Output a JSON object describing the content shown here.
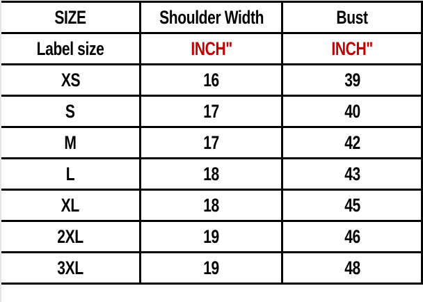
{
  "headers": [
    "SIZE",
    "Shoulder Width",
    "Bust"
  ],
  "unit_row": {
    "label": "Label size",
    "units": [
      "INCH\"",
      "INCH\""
    ]
  },
  "rows": [
    [
      "XS",
      "16",
      "39"
    ],
    [
      "S",
      "17",
      "40"
    ],
    [
      "M",
      "17",
      "42"
    ],
    [
      "L",
      "18",
      "43"
    ],
    [
      "XL",
      "18",
      "45"
    ],
    [
      "2XL",
      "19",
      "46"
    ],
    [
      "3XL",
      "19",
      "48"
    ]
  ],
  "colors": {
    "unit_text": "#c00000",
    "text": "#000000",
    "border": "#000000"
  }
}
